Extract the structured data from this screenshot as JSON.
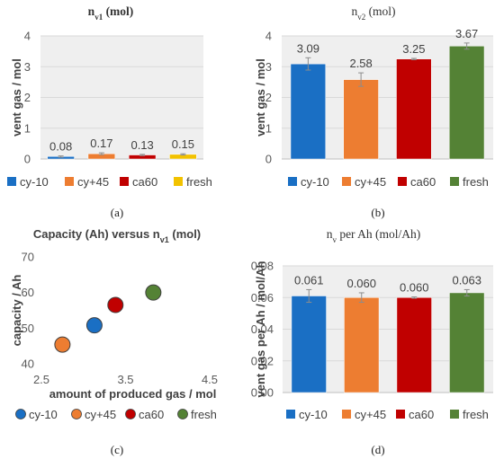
{
  "colors": {
    "cy-10": "#1a6fc4",
    "cy+45": "#ed7d31",
    "ca60": "#c00000",
    "fresh": "#548235",
    "fresh_a": "#f2c200",
    "plot_bg": "#efefef",
    "grid": "#d9d9d9",
    "error_bar": "#8c8c8c"
  },
  "legend_labels": [
    "cy-10",
    "cy+45",
    "ca60",
    "fresh"
  ],
  "chart_data": [
    {
      "id": "a",
      "type": "bar",
      "title_main": "n",
      "title_sub": "v1",
      "title_unit": " (mol)",
      "ylabel": "vent gas / mol",
      "ylim": [
        0,
        4
      ],
      "yticks": [
        "0",
        "1",
        "2",
        "3",
        "4"
      ],
      "categories": [
        "cy-10",
        "cy+45",
        "ca60",
        "fresh"
      ],
      "values": [
        0.08,
        0.17,
        0.13,
        0.15
      ],
      "errors": [
        0.02,
        0.03,
        0.02,
        0.02
      ],
      "data_labels": [
        "0.08",
        "0.17",
        "0.13",
        "0.15"
      ],
      "legend": [
        "cy-10",
        "cy+45",
        "ca60",
        "fresh"
      ],
      "caption": "(a)"
    },
    {
      "id": "b",
      "type": "bar",
      "title_main": "n",
      "title_sub": "v2",
      "title_unit": " (mol)",
      "ylabel": "vent gas / mol",
      "ylim": [
        0,
        4
      ],
      "yticks": [
        "0",
        "1",
        "2",
        "3",
        "4"
      ],
      "categories": [
        "cy-10",
        "cy+45",
        "ca60",
        "fresh"
      ],
      "values": [
        3.09,
        2.58,
        3.25,
        3.67
      ],
      "errors": [
        0.2,
        0.22,
        0.02,
        0.1
      ],
      "data_labels": [
        "3.09",
        "2.58",
        "3.25",
        "3.67"
      ],
      "legend": [
        "cy-10",
        "cy+45",
        "ca60",
        "fresh"
      ],
      "caption": "(b)"
    },
    {
      "id": "c",
      "type": "scatter",
      "title_main": "Capacity (Ah) versus n",
      "title_sub": "v1",
      "title_unit": " (mol)",
      "xlabel": "amount of produced gas / mol",
      "ylabel": "capacity / Ah",
      "xlim": [
        2.5,
        4.5
      ],
      "ylim": [
        40,
        70
      ],
      "xticks": [
        "2.5",
        "3.5",
        "4.5"
      ],
      "yticks": [
        "40",
        "50",
        "60",
        "70"
      ],
      "points": [
        {
          "name": "cy-10",
          "x": 3.13,
          "y": 50.8
        },
        {
          "name": "cy+45",
          "x": 2.75,
          "y": 45.4
        },
        {
          "name": "ca60",
          "x": 3.38,
          "y": 56.5
        },
        {
          "name": "fresh",
          "x": 3.83,
          "y": 60.0
        }
      ],
      "legend": [
        "cy-10",
        "cy+45",
        "ca60",
        "fresh"
      ],
      "caption": "(c)"
    },
    {
      "id": "d",
      "type": "bar",
      "title_main": "n",
      "title_sub": "v",
      "title_unit": " per Ah (mol/Ah)",
      "ylabel": "vent gas per Ah / mol/Ah",
      "ylim": [
        0,
        0.08
      ],
      "yticks": [
        "0.00",
        "0.02",
        "0.04",
        "0.06",
        "0.08"
      ],
      "categories": [
        "cy-10",
        "cy+45",
        "ca60",
        "fresh"
      ],
      "values": [
        0.061,
        0.06,
        0.06,
        0.063
      ],
      "errors": [
        0.004,
        0.003,
        0.0004,
        0.002
      ],
      "data_labels": [
        "0.061",
        "0.060",
        "0.060",
        "0.063"
      ],
      "legend": [
        "cy-10",
        "cy+45",
        "ca60",
        "fresh"
      ],
      "caption": "(d)"
    }
  ]
}
